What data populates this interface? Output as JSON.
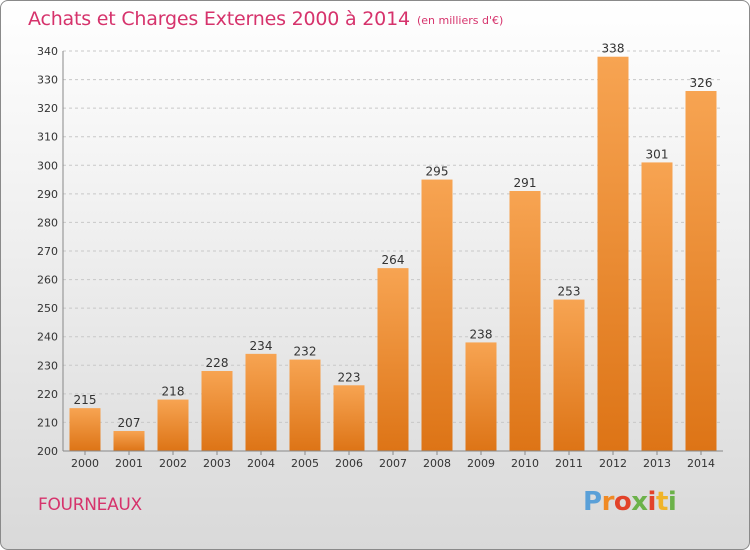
{
  "header": {
    "title": "Achats et Charges Externes 2000 à 2014",
    "subtitle": "(en milliers d'€)"
  },
  "footer": {
    "commune": "FOURNEAUX",
    "logo_letters": [
      "P",
      "r",
      "o",
      "x",
      "i",
      "t",
      "i"
    ],
    "logo_colors": [
      "#5aa0d8",
      "#f08a24",
      "#e2432a",
      "#6cb24a",
      "#e2432a",
      "#f0b429",
      "#6cb24a"
    ]
  },
  "colors": {
    "title": "#d6336c",
    "bar_top": "#f7a452",
    "bar_bottom": "#dd7416"
  },
  "chart_data": {
    "type": "bar",
    "title": "Achats et Charges Externes 2000 à 2014",
    "subtitle": "(en milliers d'€)",
    "categories": [
      "2000",
      "2001",
      "2002",
      "2003",
      "2004",
      "2005",
      "2006",
      "2007",
      "2008",
      "2009",
      "2010",
      "2011",
      "2012",
      "2013",
      "2014"
    ],
    "values": [
      215,
      207,
      218,
      228,
      234,
      232,
      223,
      264,
      295,
      238,
      291,
      253,
      338,
      301,
      326
    ],
    "ylim": [
      200,
      340
    ],
    "yticks": [
      200,
      210,
      220,
      230,
      240,
      250,
      260,
      270,
      280,
      290,
      300,
      310,
      320,
      330,
      340
    ],
    "grid": true,
    "xlabel": "",
    "ylabel": ""
  }
}
